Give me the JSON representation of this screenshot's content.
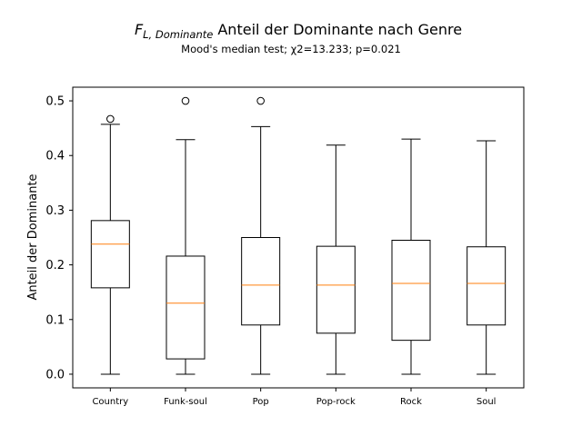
{
  "chart_data": {
    "type": "boxplot",
    "title_symbol": "F",
    "title_symbol_subscript": "L, Dominante",
    "title_text": "Anteil der Dominante nach Genre",
    "subtitle": "Mood's median test; χ2=13.233; p=0.021",
    "xlabel": "",
    "ylabel": "Anteil der Dominante",
    "ylim": [
      -0.025,
      0.525
    ],
    "yticks": [
      0.0,
      0.1,
      0.2,
      0.3,
      0.4,
      0.5
    ],
    "ytick_labels": [
      "0.0",
      "0.1",
      "0.2",
      "0.3",
      "0.4",
      "0.5"
    ],
    "grid": false,
    "median_color": "#ff7f0e",
    "box_color": "#000000",
    "categories": [
      "Country",
      "Funk-soul",
      "Pop",
      "Pop-rock",
      "Rock",
      "Soul"
    ],
    "boxes": [
      {
        "category": "Country",
        "whisker_low": 0.0,
        "q1": 0.158,
        "median": 0.238,
        "q3": 0.281,
        "whisker_high": 0.457,
        "outliers": [
          0.467
        ]
      },
      {
        "category": "Funk-soul",
        "whisker_low": 0.0,
        "q1": 0.028,
        "median": 0.13,
        "q3": 0.216,
        "whisker_high": 0.429,
        "outliers": [
          0.5
        ]
      },
      {
        "category": "Pop",
        "whisker_low": 0.0,
        "q1": 0.09,
        "median": 0.163,
        "q3": 0.25,
        "whisker_high": 0.453,
        "outliers": [
          0.5
        ]
      },
      {
        "category": "Pop-rock",
        "whisker_low": 0.0,
        "q1": 0.075,
        "median": 0.163,
        "q3": 0.234,
        "whisker_high": 0.419,
        "outliers": []
      },
      {
        "category": "Rock",
        "whisker_low": 0.0,
        "q1": 0.062,
        "median": 0.166,
        "q3": 0.245,
        "whisker_high": 0.43,
        "outliers": []
      },
      {
        "category": "Soul",
        "whisker_low": 0.0,
        "q1": 0.09,
        "median": 0.166,
        "q3": 0.233,
        "whisker_high": 0.427,
        "outliers": []
      }
    ]
  }
}
